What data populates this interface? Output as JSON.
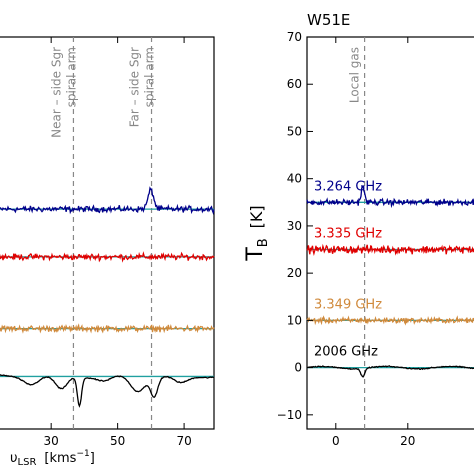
{
  "chart_data": [
    {
      "type": "line",
      "title": "",
      "xlabel": "υLSR  [kms⁻¹]",
      "ylabel": "",
      "xlim": [
        14,
        79
      ],
      "ylim": [
        -11,
        71
      ],
      "xticks": [
        30,
        50,
        70
      ],
      "xtick_labels": [
        "30",
        "50",
        "70"
      ],
      "grid": false,
      "annotations": [
        {
          "text": "Near – side Sgr\nspiral arm",
          "x": 36.7
        },
        {
          "text": "Far – side Sgr\nspiral arm",
          "x": 60.2
        }
      ],
      "series": [
        {
          "name": "",
          "color": "#00008b",
          "baseline": 35,
          "noise": 0.9,
          "features": [
            {
              "x": 60,
              "amp": 4,
              "w": 1.2
            }
          ]
        },
        {
          "name": "",
          "color": "#e00000",
          "baseline": 25,
          "noise": 0.9,
          "features": []
        },
        {
          "name": "",
          "color": "#d08a3c",
          "baseline": 10,
          "noise": 0.9,
          "features": []
        },
        {
          "name": "",
          "color": "#000000",
          "baseline": 0,
          "noise": 0.15,
          "features": [
            {
              "x": 24,
              "amp": -1.5,
              "w": 3
            },
            {
              "x": 33,
              "amp": -2.8,
              "w": 2.5
            },
            {
              "x": 38.5,
              "amp": -6,
              "w": 0.9
            },
            {
              "x": 46,
              "amp": -1.0,
              "w": 3
            },
            {
              "x": 56,
              "amp": -3,
              "w": 3
            },
            {
              "x": 61,
              "amp": -4,
              "w": 1.5
            },
            {
              "x": 69,
              "amp": -1.5,
              "w": 3
            }
          ]
        }
      ],
      "fit_lines": [
        35,
        25,
        10,
        0
      ],
      "fit_color": "#20a0a0"
    },
    {
      "type": "line",
      "title": "W51E",
      "xlabel": "",
      "ylabel": "T_B  [K]",
      "xlim": [
        -8,
        42
      ],
      "ylim": [
        -13,
        70
      ],
      "xticks": [
        0,
        20
      ],
      "xtick_labels": [
        "0",
        "20"
      ],
      "yticks": [
        -10,
        0,
        10,
        20,
        30,
        40,
        50,
        60,
        70
      ],
      "ytick_labels": [
        "−10",
        "0",
        "10",
        "20",
        "30",
        "40",
        "50",
        "60",
        "70"
      ],
      "grid": false,
      "annotations": [
        {
          "text": "Local gas",
          "x": 8
        }
      ],
      "series": [
        {
          "name": "3.264 GHz",
          "color": "#00008b",
          "baseline": 35,
          "noise": 0.9,
          "features": [
            {
              "x": 7.5,
              "amp": 3.5,
              "w": 0.6
            }
          ]
        },
        {
          "name": "3.335 GHz",
          "color": "#e00000",
          "baseline": 25,
          "noise": 1.2,
          "features": []
        },
        {
          "name": "3.349 GHz",
          "color": "#d08a3c",
          "baseline": 10,
          "noise": 0.8,
          "features": []
        },
        {
          "name": "2006 GHz",
          "color": "#000000",
          "baseline": 0,
          "noise": 0.15,
          "features": [
            {
              "x": 7.5,
              "amp": -1.8,
              "w": 0.8
            }
          ]
        }
      ],
      "fit_lines": [
        35,
        25,
        10,
        0
      ],
      "fit_color": "#20a0a0"
    }
  ]
}
